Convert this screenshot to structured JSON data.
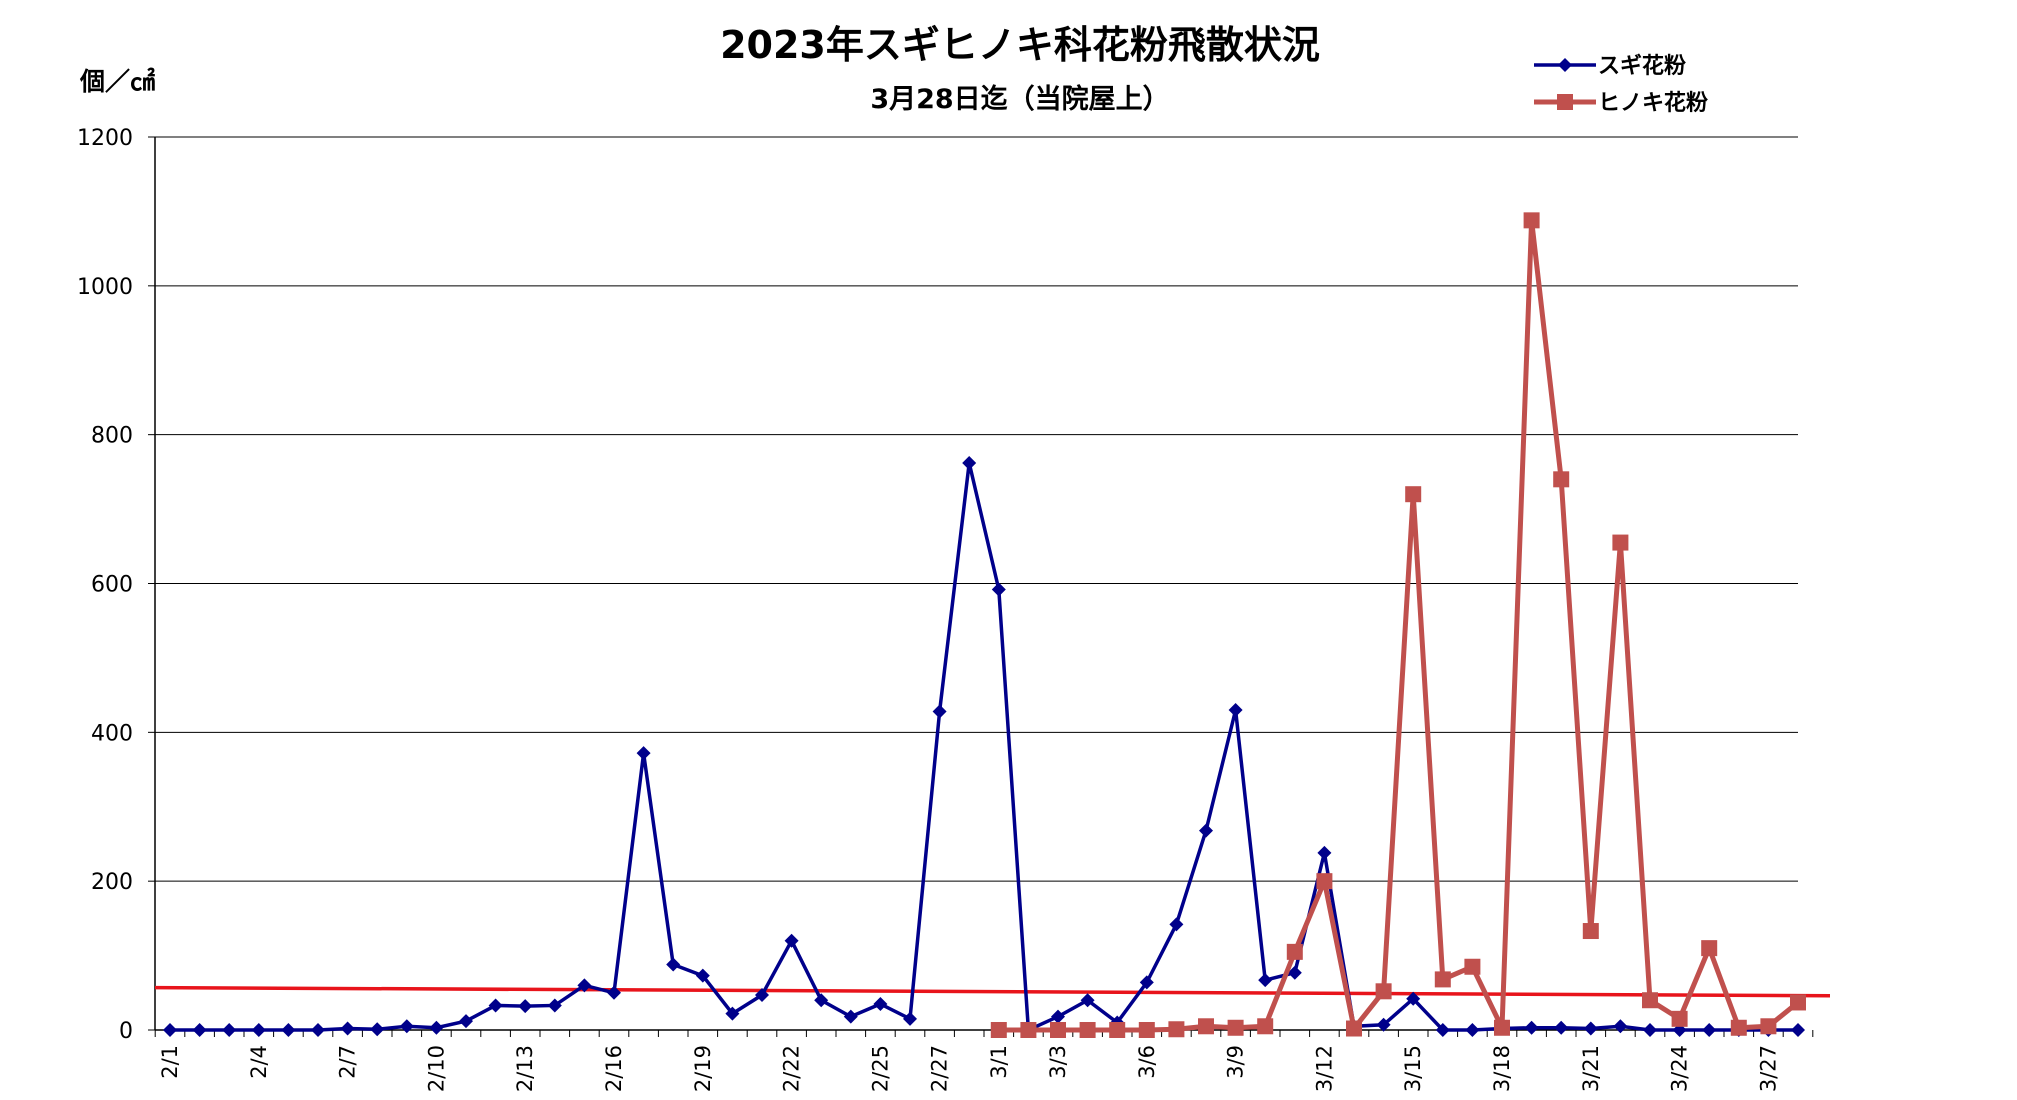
{
  "chart_data": {
    "type": "line",
    "title": "2023年スギヒノキ科花粉飛散状況",
    "subtitle": "3月28日迄（当院屋上）",
    "ylabel": "個／㎠",
    "xlabel": "",
    "ylim": [
      0,
      1200
    ],
    "y_ticks": [
      "0",
      "200",
      "400",
      "600",
      "800",
      "1000",
      "1200"
    ],
    "grid": true,
    "legend_position": "top-right",
    "x_tick_labels": [
      "2/1",
      "2/4",
      "2/7",
      "2/10",
      "2/13",
      "2/16",
      "2/19",
      "2/22",
      "2/25",
      "2/27",
      "3/1",
      "3/3",
      "3/6",
      "3/9",
      "3/12",
      "3/15",
      "3/18",
      "3/21",
      "3/24",
      "3/27"
    ],
    "series": [
      {
        "name": "スギ花粉",
        "color": "#00008B",
        "marker": "diamond",
        "start_day": 1,
        "values": [
          0,
          0,
          0,
          0,
          0,
          0,
          2,
          1,
          5,
          3,
          12,
          33,
          32,
          33,
          60,
          50,
          372,
          88,
          73,
          22,
          47,
          120,
          40,
          18,
          35,
          15,
          428,
          762,
          592,
          0,
          18,
          40,
          10,
          64,
          142,
          268,
          430,
          67,
          77,
          238,
          5,
          7,
          42,
          0,
          0,
          2,
          3,
          3,
          2,
          5,
          0,
          0,
          0,
          0,
          0,
          0
        ]
      },
      {
        "name": "ヒノキ花粉",
        "color": "#C0504D",
        "marker": "square",
        "start_day": 29,
        "values": [
          0,
          0,
          0,
          0,
          0,
          0,
          1,
          5,
          3,
          5,
          105,
          200,
          2,
          52,
          720,
          68,
          85,
          3,
          1088,
          740,
          133,
          655,
          40,
          15,
          110,
          3,
          5,
          37
        ]
      }
    ],
    "reference_line": {
      "color": "#E8141B",
      "start_value": 57,
      "end_value": 46
    }
  }
}
